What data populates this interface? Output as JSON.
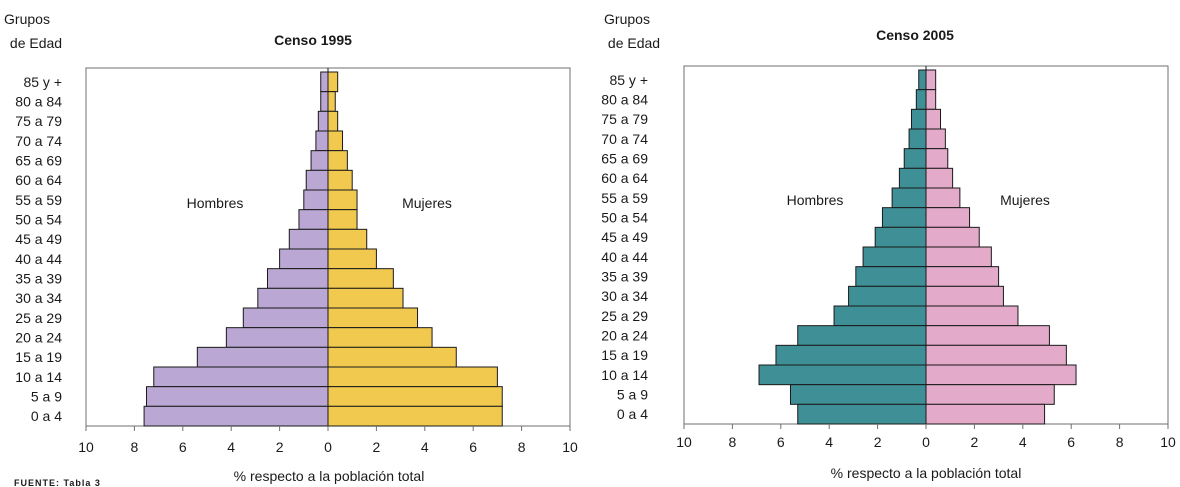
{
  "source_note": "FUENTE: Tabla 3",
  "chart_data": [
    {
      "type": "bar",
      "subtype": "population-pyramid",
      "title": "Censo 1995",
      "y_axis_title": [
        "Grupos",
        "de Edad"
      ],
      "xlabel": "% respecto a la población total",
      "xlim": [
        -10,
        10
      ],
      "xticks": [
        10,
        8,
        6,
        4,
        2,
        0,
        2,
        4,
        6,
        8,
        10
      ],
      "categories": [
        "85 y +",
        "80 a 84",
        "75 a 79",
        "70 a 74",
        "65 a 69",
        "60 a 64",
        "55 a 59",
        "50 a 54",
        "45 a 49",
        "40 a 44",
        "35 a 39",
        "30 a 34",
        "25 a 29",
        "20 a 24",
        "15 a 19",
        "10 a 14",
        "5 a 9",
        "0 a 4"
      ],
      "series": [
        {
          "name": "Hombres",
          "color": "#bba7d3",
          "values": [
            0.3,
            0.3,
            0.4,
            0.5,
            0.7,
            0.9,
            1.0,
            1.2,
            1.6,
            2.0,
            2.5,
            2.9,
            3.5,
            4.2,
            5.4,
            7.2,
            7.5,
            7.6
          ]
        },
        {
          "name": "Mujeres",
          "color": "#f1c94e",
          "values": [
            0.4,
            0.3,
            0.4,
            0.6,
            0.8,
            1.0,
            1.2,
            1.2,
            1.6,
            2.0,
            2.7,
            3.1,
            3.7,
            4.3,
            5.3,
            7.0,
            7.2,
            7.2
          ]
        }
      ]
    },
    {
      "type": "bar",
      "subtype": "population-pyramid",
      "title": "Censo 2005",
      "y_axis_title": [
        "Grupos",
        "de Edad"
      ],
      "xlabel": "% respecto a la población total",
      "xlim": [
        -10,
        10
      ],
      "xticks": [
        10,
        8,
        6,
        4,
        2,
        0,
        2,
        4,
        6,
        8,
        10
      ],
      "categories": [
        "85 y +",
        "80 a 84",
        "75 a 79",
        "70 a 74",
        "65 a 69",
        "60 a 64",
        "55 a 59",
        "50 a 54",
        "45 a 49",
        "40 a 44",
        "35 a 39",
        "30 a 34",
        "25 a 29",
        "20 a 24",
        "15 a 19",
        "10 a 14",
        "5 a 9",
        "0 a 4"
      ],
      "series": [
        {
          "name": "Hombres",
          "color": "#3f9096",
          "values": [
            0.3,
            0.4,
            0.6,
            0.7,
            0.9,
            1.1,
            1.4,
            1.8,
            2.1,
            2.6,
            2.9,
            3.2,
            3.8,
            5.3,
            6.2,
            6.9,
            5.6,
            5.3
          ]
        },
        {
          "name": "Mujeres",
          "color": "#e3aac9",
          "values": [
            0.4,
            0.4,
            0.6,
            0.8,
            0.9,
            1.1,
            1.4,
            1.8,
            2.2,
            2.7,
            3.0,
            3.2,
            3.8,
            5.1,
            5.8,
            6.2,
            5.3,
            4.9
          ]
        }
      ]
    }
  ]
}
